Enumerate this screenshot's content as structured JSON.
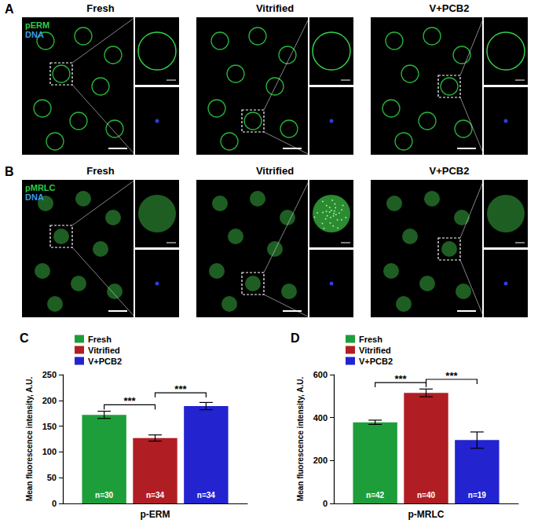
{
  "panels": [
    {
      "letter": "A",
      "columns": [
        "Fresh",
        "Vitrified",
        "V+PCB2"
      ],
      "stains": [
        {
          "text": "pERM",
          "color": "#2ecc40"
        },
        {
          "text": "DNA",
          "color": "#3b9ae8"
        }
      ]
    },
    {
      "letter": "B",
      "columns": [
        "Fresh",
        "Vitrified",
        "V+PCB2"
      ],
      "stains": [
        {
          "text": "pMRLC",
          "color": "#2ecc40"
        },
        {
          "text": "DNA",
          "color": "#3b9ae8"
        }
      ]
    }
  ],
  "chart_data": [
    {
      "type": "bar",
      "title": "C",
      "categories": [
        "p-ERM"
      ],
      "y_label": "Mean fluorescence intensity, A.U.",
      "ylim": [
        0,
        250
      ],
      "yticks": [
        0,
        50,
        100,
        150,
        200,
        250
      ],
      "legend": "upper left",
      "series": [
        {
          "name": "Fresh",
          "color": "#1e9e3a",
          "values": [
            172
          ],
          "errors": [
            7
          ],
          "annotation": "n=30"
        },
        {
          "name": "Vitrified",
          "color": "#b01e24",
          "values": [
            127
          ],
          "errors": [
            6
          ],
          "annotation": "n=34"
        },
        {
          "name": "V+PCB2",
          "color": "#2323cf",
          "values": [
            189
          ],
          "errors": [
            7
          ],
          "annotation": "n=34"
        }
      ],
      "significance": [
        {
          "from": "Fresh",
          "to": "Vitrified",
          "text": "***"
        },
        {
          "from": "Vitrified",
          "to": "V+PCB2",
          "text": "***"
        }
      ]
    },
    {
      "type": "bar",
      "title": "D",
      "categories": [
        "p-MRLC"
      ],
      "y_label": "Mean fluorescence intensity, A.U.",
      "ylim": [
        0,
        600
      ],
      "yticks": [
        0,
        200,
        400,
        600
      ],
      "legend": "upper left",
      "series": [
        {
          "name": "Fresh",
          "color": "#1e9e3a",
          "values": [
            378
          ],
          "errors": [
            10
          ],
          "annotation": "n=42"
        },
        {
          "name": "Vitrified",
          "color": "#b01e24",
          "values": [
            515
          ],
          "errors": [
            18
          ],
          "annotation": "n=40"
        },
        {
          "name": "V+PCB2",
          "color": "#2323cf",
          "values": [
            295
          ],
          "errors": [
            38
          ],
          "annotation": "n=19"
        }
      ],
      "significance": [
        {
          "from": "Fresh",
          "to": "Vitrified",
          "text": "***"
        },
        {
          "from": "Vitrified",
          "to": "V+PCB2",
          "text": "***"
        }
      ]
    }
  ]
}
